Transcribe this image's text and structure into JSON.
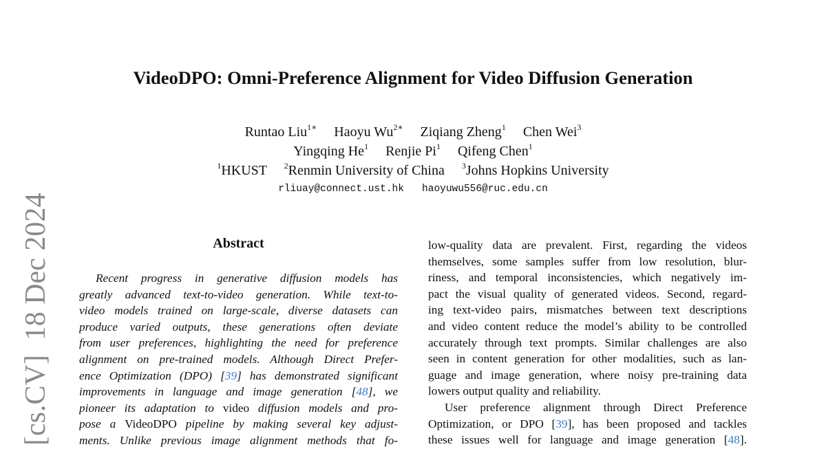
{
  "title": "VideoDPO: Omni-Preference Alignment for Video Diffusion Generation",
  "authors_line1": [
    {
      "name": "Runtao Liu",
      "sup": "1∗"
    },
    {
      "name": "Haoyu Wu",
      "sup": "2∗"
    },
    {
      "name": "Ziqiang Zheng",
      "sup": "1"
    },
    {
      "name": "Chen Wei",
      "sup": "3"
    }
  ],
  "authors_line2": [
    {
      "name": "Yingqing He",
      "sup": "1"
    },
    {
      "name": "Renjie Pi",
      "sup": "1"
    },
    {
      "name": "Qifeng Chen",
      "sup": "1"
    }
  ],
  "affiliations": [
    {
      "sup": "1",
      "name": "HKUST"
    },
    {
      "sup": "2",
      "name": "Renmin University of China"
    },
    {
      "sup": "3",
      "name": "Johns Hopkins University"
    }
  ],
  "emails": [
    "rliuay@connect.ust.hk",
    "haoyuwu556@ruc.edu.cn"
  ],
  "side_watermark": "[cs.CV]  18 Dec 2024",
  "abstract_heading": "Abstract",
  "link_color": "#3b7fc4",
  "left_column": [
    {
      "indent": true,
      "segs": [
        {
          "t": "Recent progress in generative diffusion models has",
          "s": "i"
        }
      ]
    },
    {
      "segs": [
        {
          "t": "greatly advanced text-to-video generation.  While text-to-",
          "s": "i"
        }
      ]
    },
    {
      "segs": [
        {
          "t": "video models trained on large-scale, diverse datasets can",
          "s": "i"
        }
      ]
    },
    {
      "segs": [
        {
          "t": "produce varied outputs, these generations often deviate",
          "s": "i"
        }
      ]
    },
    {
      "segs": [
        {
          "t": "from user preferences, highlighting the need for preference",
          "s": "i"
        }
      ]
    },
    {
      "segs": [
        {
          "t": "alignment on pre-trained models.  Although Direct Prefer-",
          "s": "i"
        }
      ]
    },
    {
      "segs": [
        {
          "t": "ence Optimization (DPO) [",
          "s": "i"
        },
        {
          "t": "39",
          "s": "ic"
        },
        {
          "t": "] has demonstrated significant",
          "s": "i"
        }
      ]
    },
    {
      "segs": [
        {
          "t": "improvements in language and image generation [",
          "s": "i"
        },
        {
          "t": "48",
          "s": "ic"
        },
        {
          "t": "], we",
          "s": "i"
        }
      ]
    },
    {
      "segs": [
        {
          "t": "pioneer its adaptation to ",
          "s": "i"
        },
        {
          "t": "video",
          "s": "r"
        },
        {
          "t": " diffusion models and pro-",
          "s": "i"
        }
      ]
    },
    {
      "segs": [
        {
          "t": "pose a ",
          "s": "i"
        },
        {
          "t": "VideoDPO",
          "s": "r"
        },
        {
          "t": " pipeline by making several key adjust-",
          "s": "i"
        }
      ]
    },
    {
      "segs": [
        {
          "t": "ments.  Unlike previous image alignment methods that fo-",
          "s": "i"
        }
      ]
    }
  ],
  "right_column": [
    {
      "segs": [
        {
          "t": "low-quality data are prevalent.  First, regarding the videos",
          "s": "r"
        }
      ]
    },
    {
      "segs": [
        {
          "t": "themselves, some samples suffer from low resolution, blur-",
          "s": "r"
        }
      ]
    },
    {
      "segs": [
        {
          "t": "riness, and temporal inconsistencies, which negatively im-",
          "s": "r"
        }
      ]
    },
    {
      "segs": [
        {
          "t": "pact the visual quality of generated videos. Second, regard-",
          "s": "r"
        }
      ]
    },
    {
      "segs": [
        {
          "t": "ing text-video pairs, mismatches between text descriptions",
          "s": "r"
        }
      ]
    },
    {
      "segs": [
        {
          "t": "and video content reduce the model’s ability to be controlled",
          "s": "r"
        }
      ]
    },
    {
      "segs": [
        {
          "t": "accurately through text prompts. Similar challenges are also",
          "s": "r"
        }
      ]
    },
    {
      "segs": [
        {
          "t": "seen in content generation for other modalities, such as lan-",
          "s": "r"
        }
      ]
    },
    {
      "segs": [
        {
          "t": "guage and image generation, where noisy pre-training data",
          "s": "r"
        }
      ]
    },
    {
      "last": true,
      "segs": [
        {
          "t": "lowers output quality and reliability.",
          "s": "r"
        }
      ]
    },
    {
      "indent": true,
      "segs": [
        {
          "t": "User preference alignment through Direct Preference",
          "s": "r"
        }
      ]
    },
    {
      "segs": [
        {
          "t": "Optimization, or DPO [",
          "s": "r"
        },
        {
          "t": "39",
          "s": "c"
        },
        {
          "t": "], has been proposed and tackles",
          "s": "r"
        }
      ]
    },
    {
      "segs": [
        {
          "t": "these issues well for language and image generation [",
          "s": "r"
        },
        {
          "t": "48",
          "s": "c"
        },
        {
          "t": "].",
          "s": "r"
        }
      ]
    }
  ]
}
